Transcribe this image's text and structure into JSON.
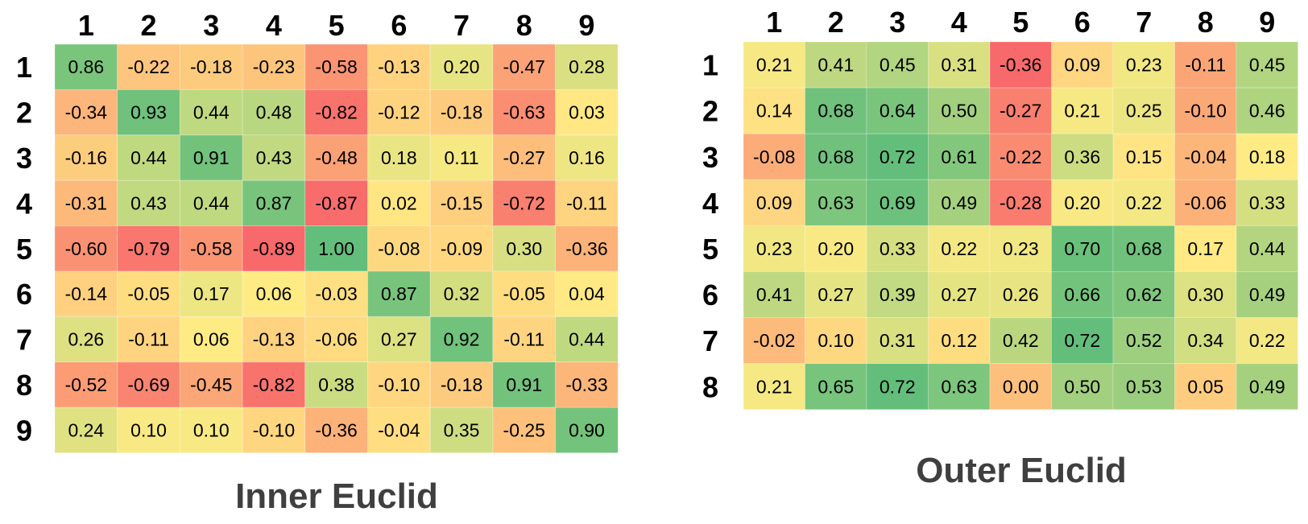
{
  "colors": {
    "low": "#f8696b",
    "mid": "#ffeb84",
    "high": "#63be7b",
    "background": "#ffffff",
    "title_text": "#3f3f3f"
  },
  "chart_data": [
    {
      "type": "heatmap",
      "title": "Inner Euclid",
      "col_labels": [
        "1",
        "2",
        "3",
        "4",
        "5",
        "6",
        "7",
        "8",
        "9"
      ],
      "row_labels": [
        "1",
        "2",
        "3",
        "4",
        "5",
        "6",
        "7",
        "8",
        "9"
      ],
      "color_scale": "red-yellow-green",
      "values": [
        [
          0.86,
          -0.22,
          -0.18,
          -0.23,
          -0.58,
          -0.13,
          0.2,
          -0.47,
          0.28
        ],
        [
          -0.34,
          0.93,
          0.44,
          0.48,
          -0.82,
          -0.12,
          -0.18,
          -0.63,
          0.03
        ],
        [
          -0.16,
          0.44,
          0.91,
          0.43,
          -0.48,
          0.18,
          0.11,
          -0.27,
          0.16
        ],
        [
          -0.31,
          0.43,
          0.44,
          0.87,
          -0.87,
          0.02,
          -0.15,
          -0.72,
          -0.11
        ],
        [
          -0.6,
          -0.79,
          -0.58,
          -0.89,
          1.0,
          -0.08,
          -0.09,
          0.3,
          -0.36
        ],
        [
          -0.14,
          -0.05,
          0.17,
          0.06,
          -0.03,
          0.87,
          0.32,
          -0.05,
          0.04
        ],
        [
          0.26,
          -0.11,
          0.06,
          -0.13,
          -0.06,
          0.27,
          0.92,
          -0.11,
          0.44
        ],
        [
          -0.52,
          -0.69,
          -0.45,
          -0.82,
          0.38,
          -0.1,
          -0.18,
          0.91,
          -0.33
        ],
        [
          0.24,
          0.1,
          0.1,
          -0.1,
          -0.36,
          -0.04,
          0.35,
          -0.25,
          0.9
        ]
      ]
    },
    {
      "type": "heatmap",
      "title": "Outer Euclid",
      "col_labels": [
        "1",
        "2",
        "3",
        "4",
        "5",
        "6",
        "7",
        "8",
        "9"
      ],
      "row_labels": [
        "1",
        "2",
        "3",
        "4",
        "5",
        "6",
        "7",
        "8"
      ],
      "color_scale": "red-yellow-green",
      "values": [
        [
          0.21,
          0.41,
          0.45,
          0.31,
          -0.36,
          0.09,
          0.23,
          -0.11,
          0.45
        ],
        [
          0.14,
          0.68,
          0.64,
          0.5,
          -0.27,
          0.21,
          0.25,
          -0.1,
          0.46
        ],
        [
          -0.08,
          0.68,
          0.72,
          0.61,
          -0.22,
          0.36,
          0.15,
          -0.04,
          0.18
        ],
        [
          0.09,
          0.63,
          0.69,
          0.49,
          -0.28,
          0.2,
          0.22,
          -0.06,
          0.33
        ],
        [
          0.23,
          0.2,
          0.33,
          0.22,
          0.23,
          0.7,
          0.68,
          0.17,
          0.44
        ],
        [
          0.41,
          0.27,
          0.39,
          0.27,
          0.26,
          0.66,
          0.62,
          0.3,
          0.49
        ],
        [
          -0.02,
          0.1,
          0.31,
          0.12,
          0.42,
          0.72,
          0.52,
          0.34,
          0.22
        ],
        [
          0.21,
          0.65,
          0.72,
          0.63,
          0.0,
          0.5,
          0.53,
          0.05,
          0.49
        ]
      ]
    }
  ]
}
